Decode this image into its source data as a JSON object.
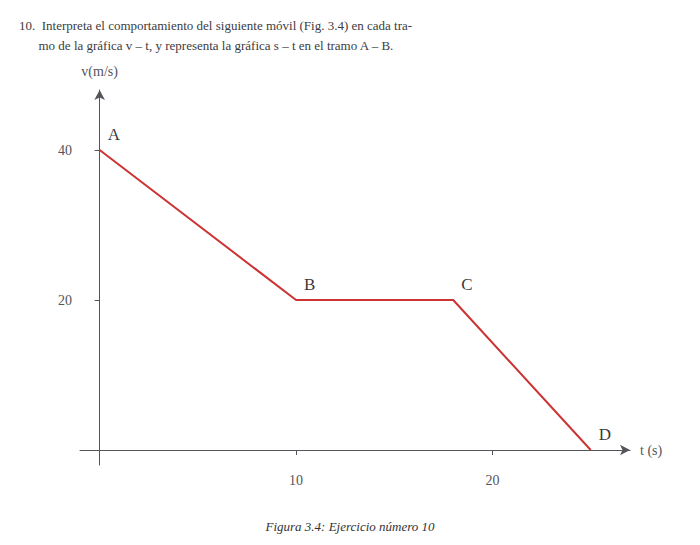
{
  "chart_data": {
    "type": "line",
    "title": "10.  Interpreta el comportamiento del siguiente móvil (Fig. 3.4) en cada tra-\n      mo de la gráfica v – t, y representa la gráfica s – t en el tramo A – B.",
    "caption": "Figura 3.4: Ejercicio número 10",
    "xlabel": "t (s)",
    "ylabel": "v(m/s)",
    "x": [
      0,
      10,
      18,
      25
    ],
    "values": [
      40,
      20,
      20,
      0
    ],
    "color": "#cc3333",
    "xlim": [
      -1,
      27
    ],
    "ylim": [
      -2,
      48
    ],
    "xticks": [
      10,
      20
    ],
    "yticks": [
      20,
      40
    ],
    "grid": false,
    "annotations": [
      {
        "text": "A",
        "x": 0,
        "y": 40
      },
      {
        "text": "B",
        "x": 10,
        "y": 20
      },
      {
        "text": "C",
        "x": 18,
        "y": 20
      },
      {
        "text": "D",
        "x": 25,
        "y": 0
      }
    ]
  }
}
